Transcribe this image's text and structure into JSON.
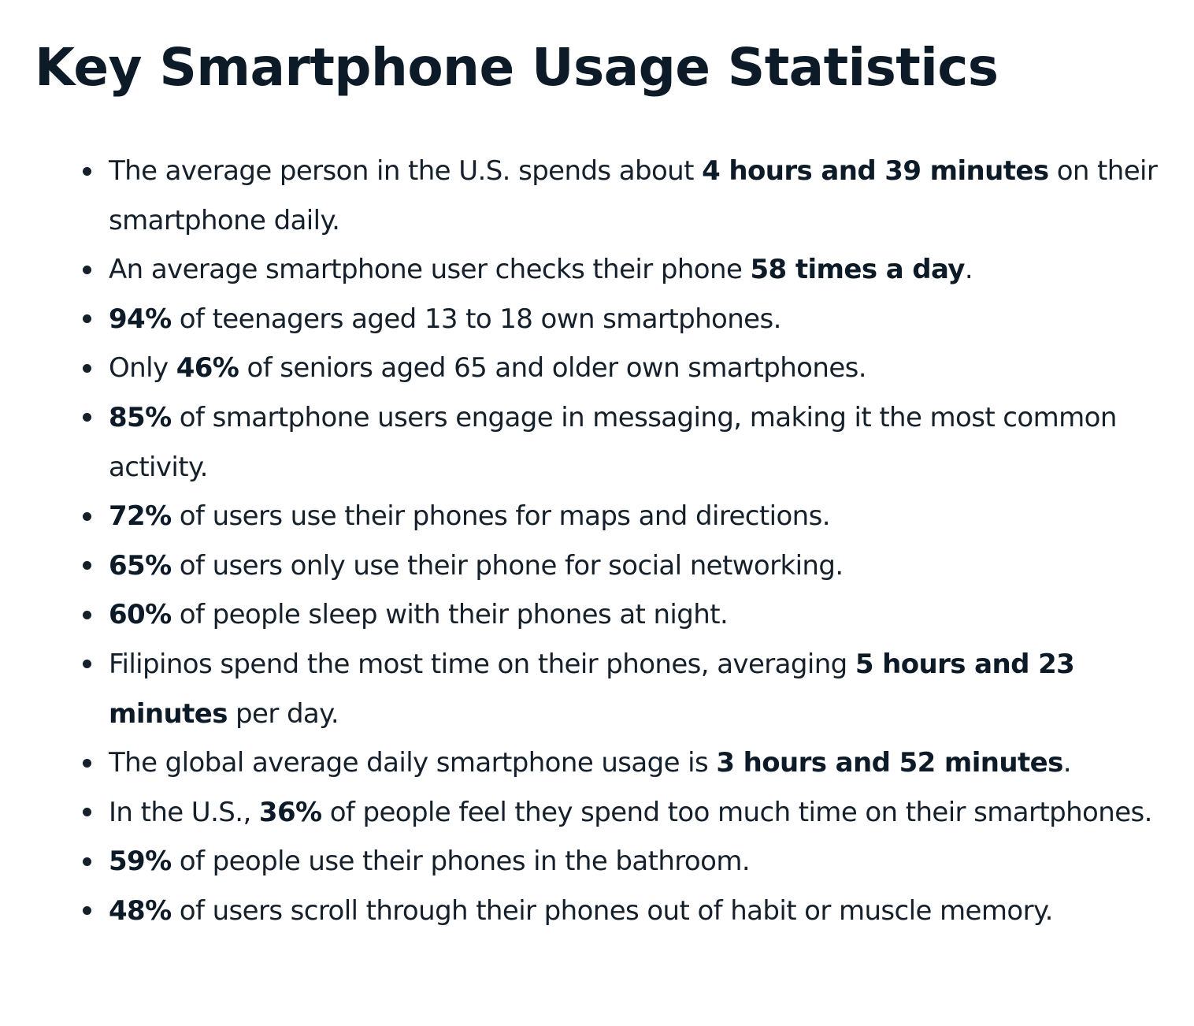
{
  "title": "Key Smartphone Usage Statistics",
  "items": [
    {
      "pre": "The average person in the U.S. spends about ",
      "bold": "4 hours and 39 minutes",
      "post": " on their smartphone daily."
    },
    {
      "pre": "An average smartphone user checks their phone ",
      "bold": "58 times a day",
      "post": "."
    },
    {
      "pre": "",
      "bold": "94%",
      "post": " of teenagers aged 13 to 18 own smartphones."
    },
    {
      "pre": "Only ",
      "bold": "46%",
      "post": " of seniors aged 65 and older own smartphones."
    },
    {
      "pre": "",
      "bold": "85%",
      "post": " of smartphone users engage in messaging, making it the most common activity."
    },
    {
      "pre": "",
      "bold": "72%",
      "post": " of users use their phones for maps and directions."
    },
    {
      "pre": "",
      "bold": "65%",
      "post": " of users only use their phone for social networking."
    },
    {
      "pre": "",
      "bold": "60%",
      "post": " of people sleep with their phones at night."
    },
    {
      "pre": "Filipinos spend the most time on their phones, averaging ",
      "bold": "5 hours and 23 minutes",
      "post": " per day."
    },
    {
      "pre": "The global average daily smartphone usage is ",
      "bold": "3 hours and 52 minutes",
      "post": "."
    },
    {
      "pre": "In the U.S., ",
      "bold": "36%",
      "post": " of people feel they spend too much time on their smartphones."
    },
    {
      "pre": "",
      "bold": "59%",
      "post": " of people use their phones in the bathroom."
    },
    {
      "pre": "",
      "bold": "48%",
      "post": " of users scroll through their phones out of habit or muscle memory."
    }
  ]
}
